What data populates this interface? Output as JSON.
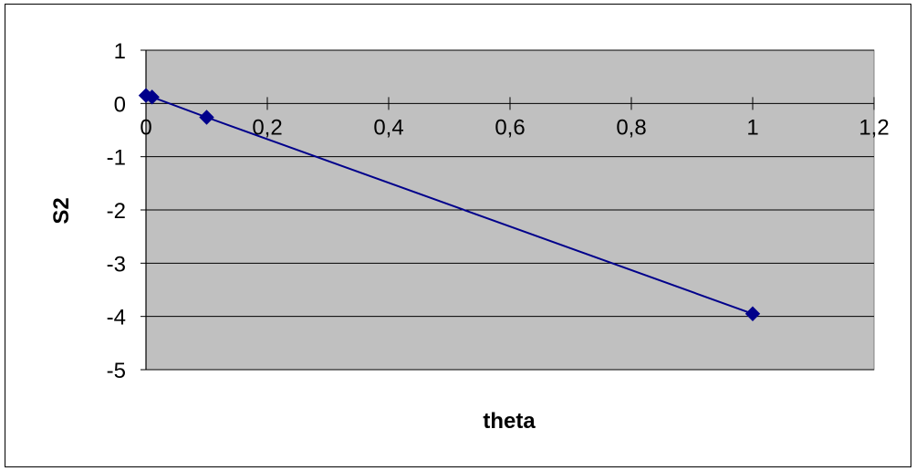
{
  "chart_data": {
    "type": "line",
    "title": "",
    "xlabel": "theta",
    "ylabel": "S2",
    "xlim": [
      0,
      1.2
    ],
    "ylim": [
      -5,
      1
    ],
    "x_ticks": [
      0,
      0.2,
      0.4,
      0.6,
      0.8,
      1,
      1.2
    ],
    "x_tick_labels": [
      "0",
      "0,2",
      "0,4",
      "0,6",
      "0,8",
      "1",
      "1,2"
    ],
    "y_ticks": [
      1,
      0,
      -1,
      -2,
      -3,
      -4,
      -5
    ],
    "y_tick_labels": [
      "1",
      "0",
      "-1",
      "-2",
      "-3",
      "-4",
      "-5"
    ],
    "grid": "horizontal",
    "legend": "none",
    "series": [
      {
        "x": [
          0,
          0.01,
          0.1,
          1
        ],
        "y": [
          0.15,
          0.12,
          -0.26,
          -3.95
        ]
      }
    ],
    "colors": {
      "plot_area": "#c0c0c0",
      "series": "#00008b",
      "grid": "#000000"
    }
  }
}
